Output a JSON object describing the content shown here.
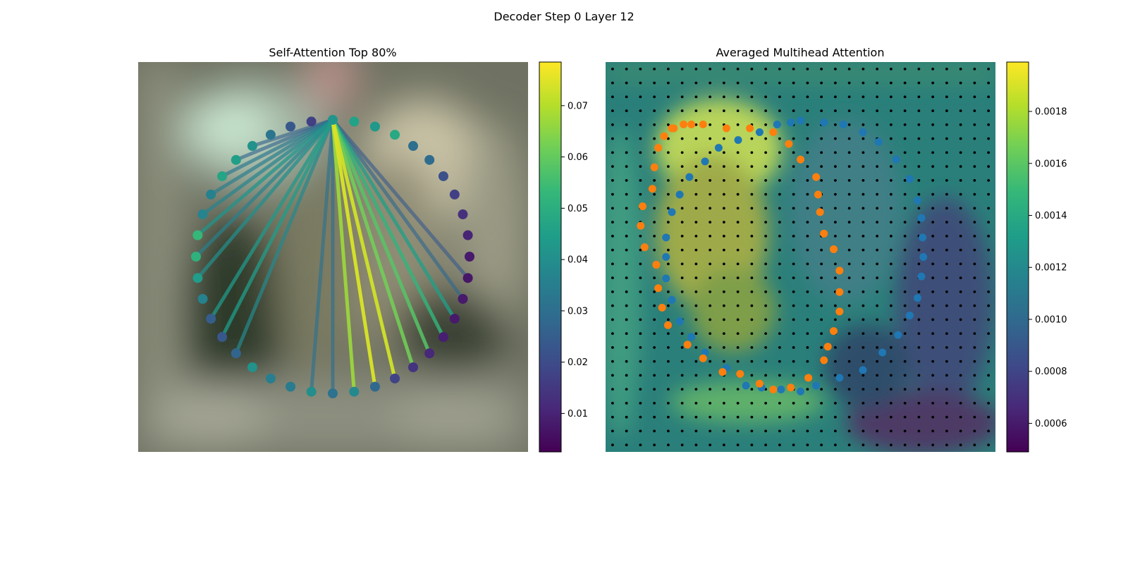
{
  "figure": {
    "suptitle": "Decoder Step 0 Layer 12"
  },
  "colors": {
    "viridis": [
      "#440154",
      "#482878",
      "#3e4a89",
      "#31688e",
      "#26828e",
      "#1f9e89",
      "#35b779",
      "#6ece58",
      "#b5de2b",
      "#fde725"
    ],
    "ring_point": "#1f77b4",
    "ring_point_alt": "#ff7f0e",
    "grid_dot": "#000000"
  },
  "chart_data": [
    {
      "type": "image_with_attention_lines",
      "title": "Self-Attention Top 80%",
      "n_points": 40,
      "query_index": 0,
      "point_values": [
        0.042,
        0.046,
        0.043,
        0.048,
        0.03,
        0.029,
        0.021,
        0.017,
        0.013,
        0.01,
        0.008,
        0.007,
        0.008,
        0.008,
        0.009,
        0.011,
        0.014,
        0.018,
        0.028,
        0.038,
        0.031,
        0.04,
        0.034,
        0.035,
        0.041,
        0.027,
        0.023,
        0.025,
        0.036,
        0.044,
        0.051,
        0.053,
        0.037,
        0.036,
        0.047,
        0.045,
        0.041,
        0.032,
        0.023,
        0.017
      ],
      "lines": [
        {
          "to": 18,
          "value": 0.074
        },
        {
          "to": 17,
          "value": 0.073
        },
        {
          "to": 19,
          "value": 0.067
        },
        {
          "to": 16,
          "value": 0.062
        },
        {
          "to": 15,
          "value": 0.058
        },
        {
          "to": 14,
          "value": 0.052
        },
        {
          "to": 13,
          "value": 0.045
        },
        {
          "to": 26,
          "value": 0.044
        },
        {
          "to": 27,
          "value": 0.043
        },
        {
          "to": 31,
          "value": 0.042
        },
        {
          "to": 29,
          "value": 0.04
        },
        {
          "to": 25,
          "value": 0.038
        },
        {
          "to": 32,
          "value": 0.037
        },
        {
          "to": 30,
          "value": 0.036
        },
        {
          "to": 33,
          "value": 0.035
        },
        {
          "to": 34,
          "value": 0.033
        },
        {
          "to": 21,
          "value": 0.031
        },
        {
          "to": 20,
          "value": 0.03
        },
        {
          "to": 12,
          "value": 0.028
        },
        {
          "to": 35,
          "value": 0.027
        },
        {
          "to": 36,
          "value": 0.026
        },
        {
          "to": 11,
          "value": 0.024
        }
      ],
      "colorbar": {
        "min": 0.0025,
        "max": 0.0785,
        "ticks": [
          "0.01",
          "0.02",
          "0.03",
          "0.04",
          "0.05",
          "0.06",
          "0.07"
        ]
      }
    },
    {
      "type": "heatmap_with_points",
      "title": "Averaged Multihead Attention",
      "grid_size": 28,
      "contour_blue": [
        [
          0.5,
          0.15
        ],
        [
          0.56,
          0.155
        ],
        [
          0.61,
          0.16
        ],
        [
          0.66,
          0.18
        ],
        [
          0.7,
          0.205
        ],
        [
          0.745,
          0.25
        ],
        [
          0.78,
          0.3
        ],
        [
          0.8,
          0.355
        ],
        [
          0.81,
          0.4
        ],
        [
          0.813,
          0.45
        ],
        [
          0.815,
          0.5
        ],
        [
          0.81,
          0.55
        ],
        [
          0.8,
          0.605
        ],
        [
          0.78,
          0.65
        ],
        [
          0.75,
          0.7
        ],
        [
          0.71,
          0.745
        ],
        [
          0.66,
          0.79
        ],
        [
          0.6,
          0.81
        ],
        [
          0.54,
          0.83
        ],
        [
          0.5,
          0.845
        ],
        [
          0.45,
          0.84
        ],
        [
          0.4,
          0.835
        ],
        [
          0.36,
          0.83
        ],
        [
          0.31,
          0.785
        ],
        [
          0.255,
          0.745
        ],
        [
          0.22,
          0.705
        ],
        [
          0.19,
          0.665
        ],
        [
          0.17,
          0.61
        ],
        [
          0.155,
          0.555
        ],
        [
          0.155,
          0.5
        ],
        [
          0.155,
          0.45
        ],
        [
          0.17,
          0.385
        ],
        [
          0.19,
          0.34
        ],
        [
          0.215,
          0.295
        ],
        [
          0.255,
          0.255
        ],
        [
          0.29,
          0.22
        ],
        [
          0.34,
          0.2
        ],
        [
          0.395,
          0.18
        ],
        [
          0.44,
          0.16
        ],
        [
          0.475,
          0.155
        ]
      ],
      "contour_orange": [
        [
          0.175,
          0.17
        ],
        [
          0.25,
          0.16
        ],
        [
          0.31,
          0.17
        ],
        [
          0.37,
          0.17
        ],
        [
          0.43,
          0.18
        ],
        [
          0.47,
          0.21
        ],
        [
          0.5,
          0.25
        ],
        [
          0.54,
          0.295
        ],
        [
          0.545,
          0.34
        ],
        [
          0.55,
          0.385
        ],
        [
          0.56,
          0.44
        ],
        [
          0.585,
          0.48
        ],
        [
          0.6,
          0.535
        ],
        [
          0.6,
          0.59
        ],
        [
          0.6,
          0.64
        ],
        [
          0.585,
          0.69
        ],
        [
          0.57,
          0.73
        ],
        [
          0.56,
          0.765
        ],
        [
          0.52,
          0.81
        ],
        [
          0.475,
          0.835
        ],
        [
          0.43,
          0.84
        ],
        [
          0.395,
          0.825
        ],
        [
          0.345,
          0.8
        ],
        [
          0.3,
          0.795
        ],
        [
          0.25,
          0.76
        ],
        [
          0.21,
          0.725
        ],
        [
          0.16,
          0.675
        ],
        [
          0.145,
          0.63
        ],
        [
          0.135,
          0.58
        ],
        [
          0.13,
          0.52
        ],
        [
          0.1,
          0.475
        ],
        [
          0.09,
          0.42
        ],
        [
          0.095,
          0.37
        ],
        [
          0.12,
          0.325
        ],
        [
          0.125,
          0.27
        ],
        [
          0.135,
          0.22
        ],
        [
          0.15,
          0.19
        ],
        [
          0.17,
          0.17
        ],
        [
          0.2,
          0.16
        ],
        [
          0.22,
          0.16
        ]
      ],
      "colorbar": {
        "min": 0.00049,
        "max": 0.00199,
        "ticks": [
          "0.0006",
          "0.0008",
          "0.0010",
          "0.0012",
          "0.0014",
          "0.0016",
          "0.0018"
        ]
      }
    }
  ]
}
